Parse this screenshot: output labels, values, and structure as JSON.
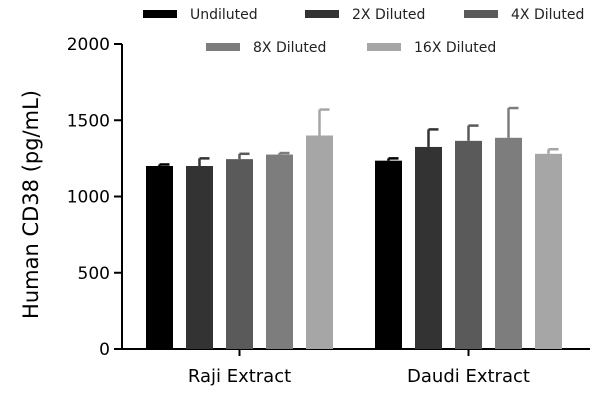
{
  "chart_data": {
    "type": "bar",
    "ylabel": "Human CD38 (pg/mL)",
    "xlabel": "",
    "ylim": [
      0,
      2000
    ],
    "yticks": [
      0,
      500,
      1000,
      1500,
      2000
    ],
    "categories": [
      "Raji Extract",
      "Daudi Extract"
    ],
    "legend_position": "top",
    "error_bars": true,
    "series": [
      {
        "name": "Undiluted",
        "color": "#000000",
        "values": [
          1200,
          1235
        ],
        "errors": [
          10,
          15
        ]
      },
      {
        "name": "2X Diluted",
        "color": "#333333",
        "values": [
          1200,
          1325
        ],
        "errors": [
          50,
          115
        ]
      },
      {
        "name": "4X Diluted",
        "color": "#5a5a5a",
        "values": [
          1245,
          1365
        ],
        "errors": [
          35,
          100
        ]
      },
      {
        "name": "8X Diluted",
        "color": "#7d7d7d",
        "values": [
          1275,
          1385
        ],
        "errors": [
          10,
          195
        ]
      },
      {
        "name": "16X Diluted",
        "color": "#a6a6a6",
        "values": [
          1400,
          1280
        ],
        "errors": [
          170,
          30
        ]
      }
    ]
  }
}
